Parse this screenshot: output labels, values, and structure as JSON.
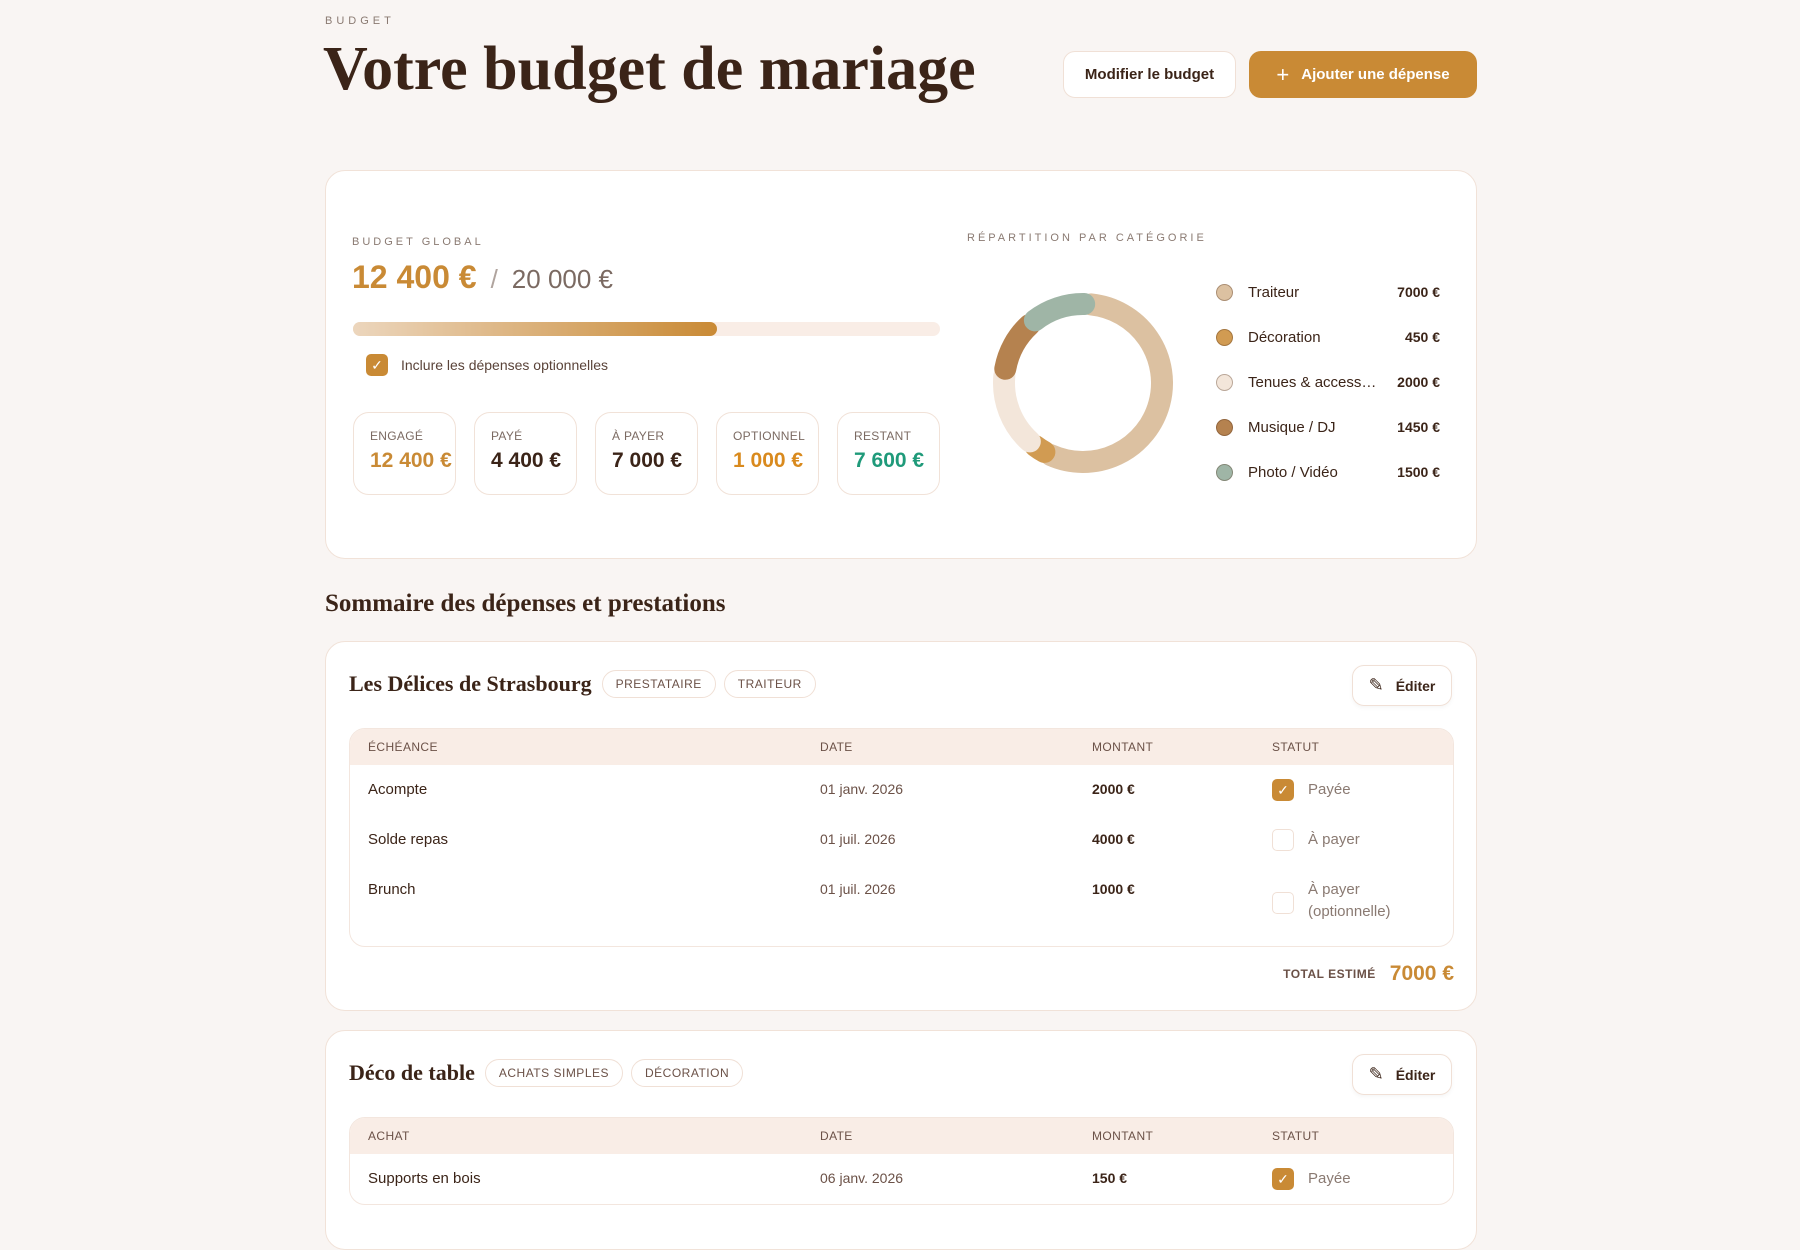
{
  "header": {
    "eyebrow": "BUDGET",
    "title": "Votre budget de mariage",
    "edit_budget": "Modifier le budget",
    "add_expense": "Ajouter une dépense"
  },
  "overview": {
    "label": "BUDGET GLOBAL",
    "spent": "12 400 €",
    "separator": "/",
    "total": "20 000 €",
    "progress_percent": 62,
    "include_optional": {
      "label": "Inclure les dépenses optionnelles",
      "checked": true
    },
    "stats": [
      {
        "label": "ENGAGÉ",
        "value": "12 400 €",
        "color": "#c98a35"
      },
      {
        "label": "PAYÉ",
        "value": "4 400 €",
        "color": "#3b2418"
      },
      {
        "label": "À PAYER",
        "value": "7 000 €",
        "color": "#3b2418"
      },
      {
        "label": "OPTIONNEL",
        "value": "1 000 €",
        "color": "#d98a1e"
      },
      {
        "label": "RESTANT",
        "value": "7 600 €",
        "color": "#1f9a7a"
      }
    ]
  },
  "chart_data": {
    "type": "pie",
    "variant": "donut",
    "title": "RÉPARTITION PAR CATÉGORIE",
    "categories": [
      "Traiteur",
      "Décoration",
      "Tenues & access…",
      "Musique / DJ",
      "Photo / Vidéo"
    ],
    "values": [
      7000,
      450,
      2000,
      1450,
      1500
    ],
    "value_labels": [
      "7000 €",
      "450 €",
      "2000 €",
      "1450 €",
      "1500 €"
    ],
    "colors": [
      "#dcc1a1",
      "#d19b52",
      "#f3e6da",
      "#b5824f",
      "#9fb5a6"
    ],
    "legend": "right"
  },
  "section_title": "Sommaire des dépenses et prestations",
  "edit_label": "Éditer",
  "vendors": [
    {
      "name": "Les Délices de Strasbourg",
      "tags": [
        "PRESTATAIRE",
        "TRAITEUR"
      ],
      "columns": [
        "ÉCHÉANCE",
        "DATE",
        "MONTANT",
        "STATUT"
      ],
      "rows": [
        {
          "item": "Acompte",
          "date": "01 janv. 2026",
          "amount": "2000 €",
          "status": "Payée",
          "status2": "",
          "paid": true
        },
        {
          "item": "Solde repas",
          "date": "01 juil. 2026",
          "amount": "4000 €",
          "status": "À payer",
          "status2": "",
          "paid": false
        },
        {
          "item": "Brunch",
          "date": "01 juil. 2026",
          "amount": "1000 €",
          "status": "À payer",
          "status2": "(optionnelle)",
          "paid": false
        }
      ],
      "total_label": "TOTAL ESTIMÉ",
      "total": "7000 €"
    },
    {
      "name": "Déco de table",
      "tags": [
        "ACHATS SIMPLES",
        "DÉCORATION"
      ],
      "columns": [
        "ACHAT",
        "DATE",
        "MONTANT",
        "STATUT"
      ],
      "rows": [
        {
          "item": "Supports en bois",
          "date": "06 janv. 2026",
          "amount": "150 €",
          "status": "Payée",
          "paid": true
        }
      ]
    }
  ]
}
